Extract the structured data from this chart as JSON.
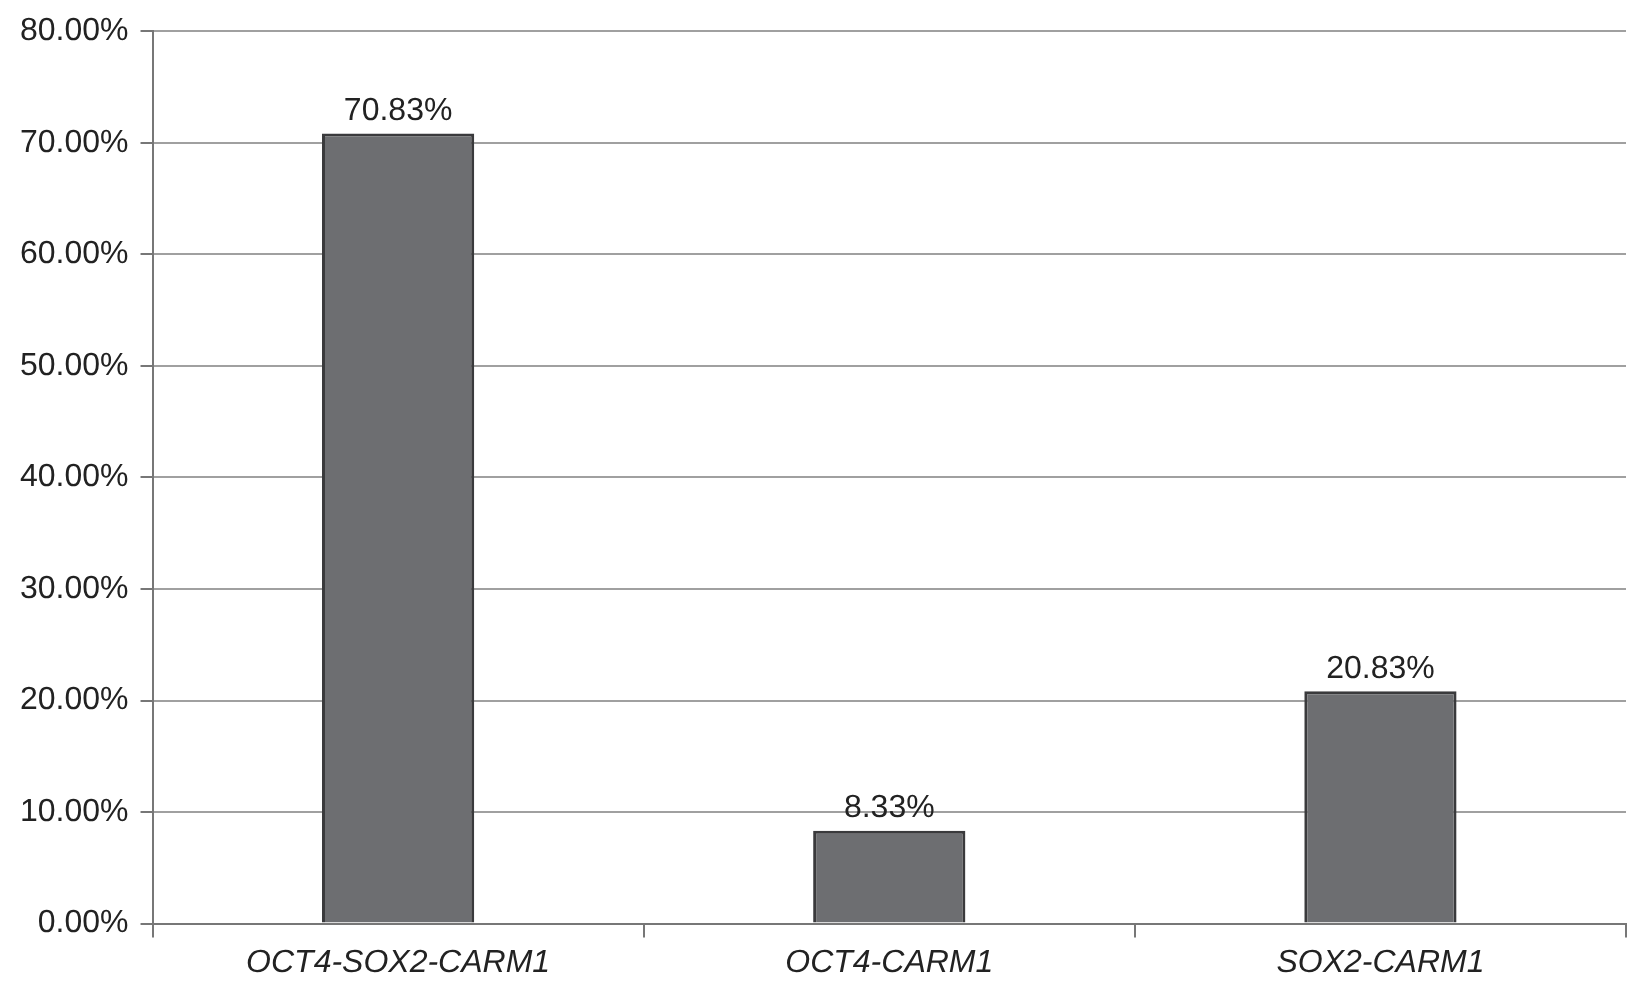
{
  "chart_data": {
    "type": "bar",
    "categories": [
      "OCT4-SOX2-CARM1",
      "OCT4-CARM1",
      "SOX2-CARM1"
    ],
    "values": [
      70.83,
      8.33,
      20.83
    ],
    "color": "#6d6e71",
    "value_labels": [
      "70.83%",
      "8.33%",
      "20.83%"
    ],
    "ylim": [
      0,
      80
    ],
    "yticks": [
      {
        "value": 0,
        "label": "0.00%"
      },
      {
        "value": 10,
        "label": "10.00%"
      },
      {
        "value": 20,
        "label": "20.00%"
      },
      {
        "value": 30,
        "label": "30.00%"
      },
      {
        "value": 40,
        "label": "40.00%"
      },
      {
        "value": 50,
        "label": "50.00%"
      },
      {
        "value": 60,
        "label": "60.00%"
      },
      {
        "value": 70,
        "label": "70.00%"
      },
      {
        "value": 80,
        "label": "80.00%"
      }
    ],
    "grid": "y",
    "legend": false
  }
}
